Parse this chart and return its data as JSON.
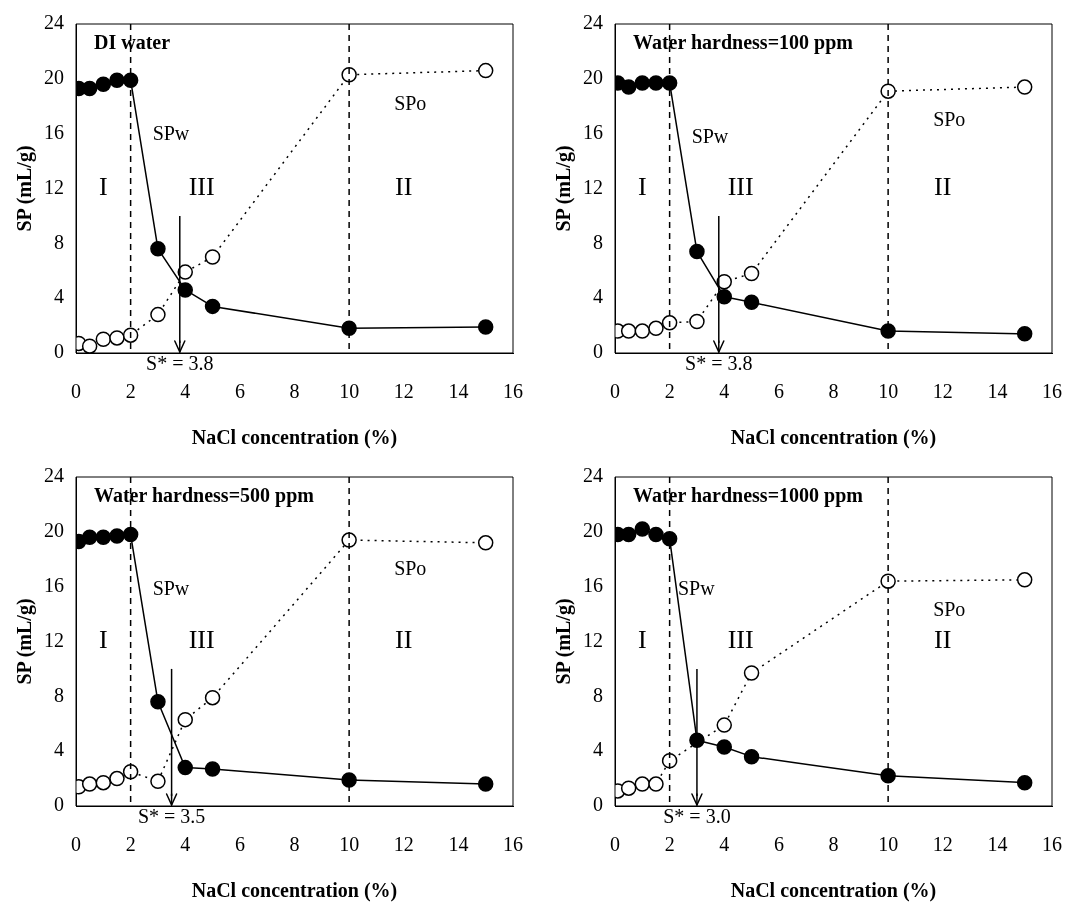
{
  "chart_data": [
    {
      "type": "line",
      "title": "DI water",
      "xlabel": "NaCl concentration (%)",
      "ylabel": "SP (mL/g)",
      "x": [
        0.1,
        0.5,
        1,
        1.5,
        2,
        3,
        4,
        5,
        10,
        15
      ],
      "series": [
        {
          "name": "SPw",
          "color": "#000000",
          "line_style": "solid",
          "values": [
            19.3,
            19.3,
            19.6,
            19.9,
            19.9,
            7.6,
            4.6,
            3.4,
            1.8,
            1.9
          ]
        },
        {
          "name": "SPo",
          "color": "#000000",
          "line_style": "dotted",
          "values": [
            0.7,
            0.5,
            1.0,
            1.1,
            1.3,
            2.8,
            5.9,
            7.0,
            20.3,
            20.6
          ]
        }
      ],
      "xlim": [
        0,
        16
      ],
      "xticks": [
        0,
        2,
        4,
        6,
        8,
        10,
        12,
        14,
        16
      ],
      "ylim": [
        0,
        24
      ],
      "yticks": [
        0,
        4,
        8,
        12,
        16,
        20,
        24
      ],
      "grid": false,
      "legend": false,
      "marker": "circle",
      "ref_lines": [
        {
          "axis": "x",
          "value": 2,
          "line_style": "dashed"
        },
        {
          "axis": "x",
          "value": 10,
          "line_style": "dashed"
        },
        {
          "axis": "x",
          "value": 3.8,
          "label": "S* = 3.8",
          "line_style": "solid"
        }
      ],
      "annotations": [
        "I",
        "III",
        "II"
      ]
    },
    {
      "type": "line",
      "title": "Water hardness=100 ppm",
      "xlabel": "NaCl concentration (%)",
      "ylabel": "SP (mL/g)",
      "x": [
        0.1,
        0.5,
        1,
        1.5,
        2,
        3,
        4,
        5,
        10,
        15
      ],
      "series": [
        {
          "name": "SPw",
          "color": "#000000",
          "line_style": "solid",
          "values": [
            19.7,
            19.4,
            19.7,
            19.7,
            19.7,
            7.4,
            4.1,
            3.7,
            1.6,
            1.4
          ]
        },
        {
          "name": "SPo",
          "color": "#000000",
          "line_style": "dotted",
          "values": [
            1.6,
            1.6,
            1.6,
            1.8,
            2.2,
            2.3,
            5.2,
            5.8,
            19.1,
            19.4
          ]
        }
      ],
      "xlim": [
        0,
        16
      ],
      "xticks": [
        0,
        2,
        4,
        6,
        8,
        10,
        12,
        14,
        16
      ],
      "ylim": [
        0,
        24
      ],
      "yticks": [
        0,
        4,
        8,
        12,
        16,
        20,
        24
      ],
      "grid": false,
      "legend": false,
      "marker": "circle",
      "ref_lines": [
        {
          "axis": "x",
          "value": 2,
          "line_style": "dashed"
        },
        {
          "axis": "x",
          "value": 10,
          "line_style": "dashed"
        },
        {
          "axis": "x",
          "value": 3.8,
          "label": "S* = 3.8",
          "line_style": "solid"
        }
      ],
      "annotations": [
        "I",
        "III",
        "II"
      ]
    },
    {
      "type": "line",
      "title": "Water hardness=500 ppm",
      "xlabel": "NaCl concentration (%)",
      "ylabel": "SP (mL/g)",
      "x": [
        0.1,
        0.5,
        1,
        1.5,
        2,
        3,
        4,
        5,
        10,
        15
      ],
      "series": [
        {
          "name": "SPw",
          "color": "#000000",
          "line_style": "solid",
          "values": [
            19.3,
            19.6,
            19.6,
            19.7,
            19.8,
            7.6,
            2.8,
            2.7,
            1.9,
            1.6
          ]
        },
        {
          "name": "SPo",
          "color": "#000000",
          "line_style": "dotted",
          "values": [
            1.4,
            1.6,
            1.7,
            2.0,
            2.5,
            1.8,
            6.3,
            7.9,
            19.4,
            19.2
          ]
        }
      ],
      "xlim": [
        0,
        16
      ],
      "xticks": [
        0,
        2,
        4,
        6,
        8,
        10,
        12,
        14,
        16
      ],
      "ylim": [
        0,
        24
      ],
      "yticks": [
        0,
        4,
        8,
        12,
        16,
        20,
        24
      ],
      "grid": false,
      "legend": false,
      "marker": "circle",
      "ref_lines": [
        {
          "axis": "x",
          "value": 2,
          "line_style": "dashed"
        },
        {
          "axis": "x",
          "value": 10,
          "line_style": "dashed"
        },
        {
          "axis": "x",
          "value": 3.5,
          "label": "S* = 3.5",
          "line_style": "solid"
        }
      ],
      "annotations": [
        "I",
        "III",
        "II"
      ]
    },
    {
      "type": "line",
      "title": "Water hardness=1000 ppm",
      "xlabel": "NaCl concentration (%)",
      "ylabel": "SP (mL/g)",
      "x": [
        0.1,
        0.5,
        1,
        1.5,
        2,
        3,
        4,
        5,
        10,
        15
      ],
      "series": [
        {
          "name": "SPw",
          "color": "#000000",
          "line_style": "solid",
          "values": [
            19.8,
            19.8,
            20.2,
            19.8,
            19.5,
            4.8,
            4.3,
            3.6,
            2.2,
            1.7
          ]
        },
        {
          "name": "SPo",
          "color": "#000000",
          "line_style": "dotted",
          "values": [
            1.1,
            1.3,
            1.6,
            1.6,
            3.3,
            null,
            5.9,
            9.7,
            16.4,
            16.5
          ]
        }
      ],
      "xlim": [
        0,
        16
      ],
      "xticks": [
        0,
        2,
        4,
        6,
        8,
        10,
        12,
        14,
        16
      ],
      "ylim": [
        0,
        24
      ],
      "yticks": [
        0,
        4,
        8,
        12,
        16,
        20,
        24
      ],
      "grid": false,
      "legend": false,
      "marker": "circle",
      "ref_lines": [
        {
          "axis": "x",
          "value": 2,
          "line_style": "dashed"
        },
        {
          "axis": "x",
          "value": 10,
          "line_style": "dashed"
        },
        {
          "axis": "x",
          "value": 3.0,
          "label": "S* = 3.0",
          "line_style": "solid"
        }
      ],
      "annotations": [
        "I",
        "III",
        "II"
      ]
    }
  ]
}
